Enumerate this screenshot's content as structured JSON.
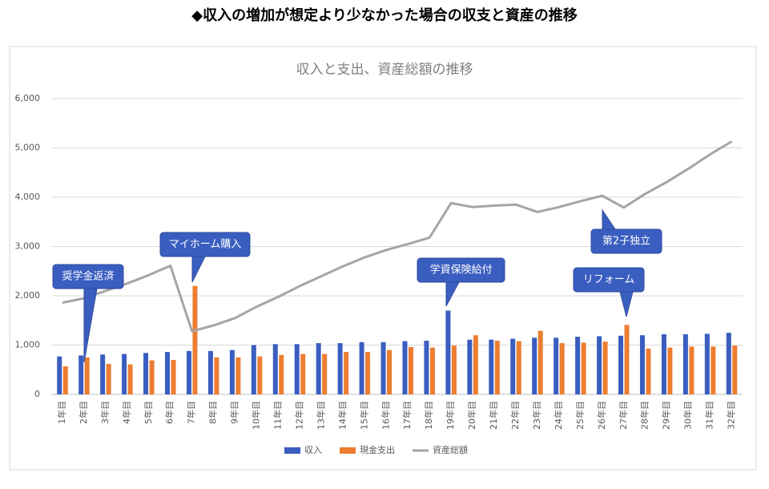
{
  "page_title": "◆収入の増加が想定より少なかった場合の収支と資産の推移",
  "chart_data": {
    "type": "bar_line",
    "title": "収入と支出、資産総額の推移",
    "categories": [
      "1年目",
      "2年目",
      "3年目",
      "4年目",
      "5年目",
      "6年目",
      "7年目",
      "8年目",
      "9年目",
      "10年目",
      "11年目",
      "12年目",
      "13年目",
      "14年目",
      "15年目",
      "16年目",
      "17年目",
      "18年目",
      "19年目",
      "20年目",
      "21年目",
      "22年目",
      "23年目",
      "24年目",
      "25年目",
      "26年目",
      "27年目",
      "28年目",
      "29年目",
      "30年目",
      "31年目",
      "32年目"
    ],
    "series": [
      {
        "name": "収入",
        "type": "bar",
        "color": "#3a5dc0",
        "values": [
          770,
          790,
          810,
          820,
          840,
          860,
          880,
          880,
          900,
          1000,
          1020,
          1020,
          1040,
          1040,
          1060,
          1060,
          1080,
          1090,
          1700,
          1110,
          1110,
          1130,
          1150,
          1150,
          1170,
          1180,
          1190,
          1200,
          1220,
          1220,
          1230,
          1250
        ]
      },
      {
        "name": "現金支出",
        "type": "bar",
        "color": "#ed7d31",
        "values": [
          570,
          750,
          620,
          610,
          690,
          700,
          2200,
          750,
          750,
          770,
          800,
          820,
          820,
          860,
          860,
          900,
          960,
          950,
          990,
          1200,
          1090,
          1080,
          1290,
          1040,
          1050,
          1070,
          1410,
          930,
          950,
          970,
          970,
          990
        ]
      },
      {
        "name": "資産総額",
        "type": "line",
        "color": "#a5a5a5",
        "values": [
          1860,
          1950,
          2100,
          2250,
          2420,
          2610,
          1280,
          1400,
          1550,
          1780,
          1980,
          2200,
          2400,
          2600,
          2780,
          2930,
          3050,
          3180,
          3880,
          3800,
          3830,
          3850,
          3700,
          3800,
          3920,
          4030,
          3790,
          4070,
          4310,
          4580,
          4870,
          5130
        ]
      }
    ],
    "ylim": [
      0,
      6000
    ],
    "yticks": [
      0,
      {
        "value": 1000,
        "label": "1,000"
      },
      {
        "value": 2000,
        "label": "2,000"
      },
      {
        "value": 3000,
        "label": "3,000"
      },
      {
        "value": 4000,
        "label": "4,000"
      },
      {
        "value": 5000,
        "label": "5,000"
      },
      {
        "value": 6000,
        "label": "6,000"
      }
    ],
    "grid": true,
    "legend": "bottom",
    "annotations": [
      {
        "text": "奨学金返済"
      },
      {
        "text": "マイホーム購入"
      },
      {
        "text": "学資保険給付"
      },
      {
        "text": "リフォーム"
      },
      {
        "text": "第2子独立"
      }
    ]
  }
}
